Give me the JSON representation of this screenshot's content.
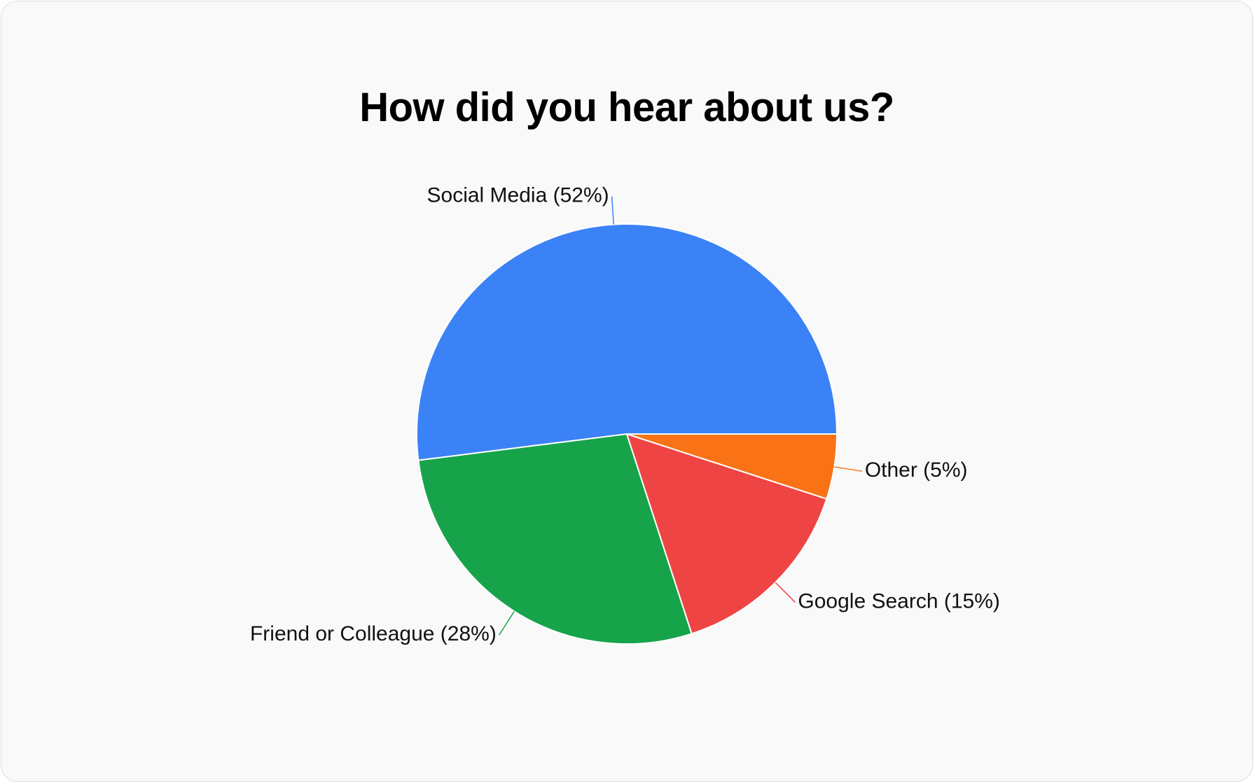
{
  "chart_data": {
    "type": "pie",
    "title": "How did you hear about us?",
    "slices": [
      {
        "label": "Social Media",
        "value": 52,
        "display": "Social Media (52%)",
        "color": "#3b82f6"
      },
      {
        "label": "Friend or Colleague",
        "value": 28,
        "display": "Friend or Colleague (28%)",
        "color": "#16a34a"
      },
      {
        "label": "Google Search",
        "value": 15,
        "display": "Google Search (15%)",
        "color": "#ef4444"
      },
      {
        "label": "Other",
        "value": 5,
        "display": "Other (5%)",
        "color": "#f97316"
      }
    ],
    "legend": "none",
    "labels": "outside-with-leader-lines"
  }
}
